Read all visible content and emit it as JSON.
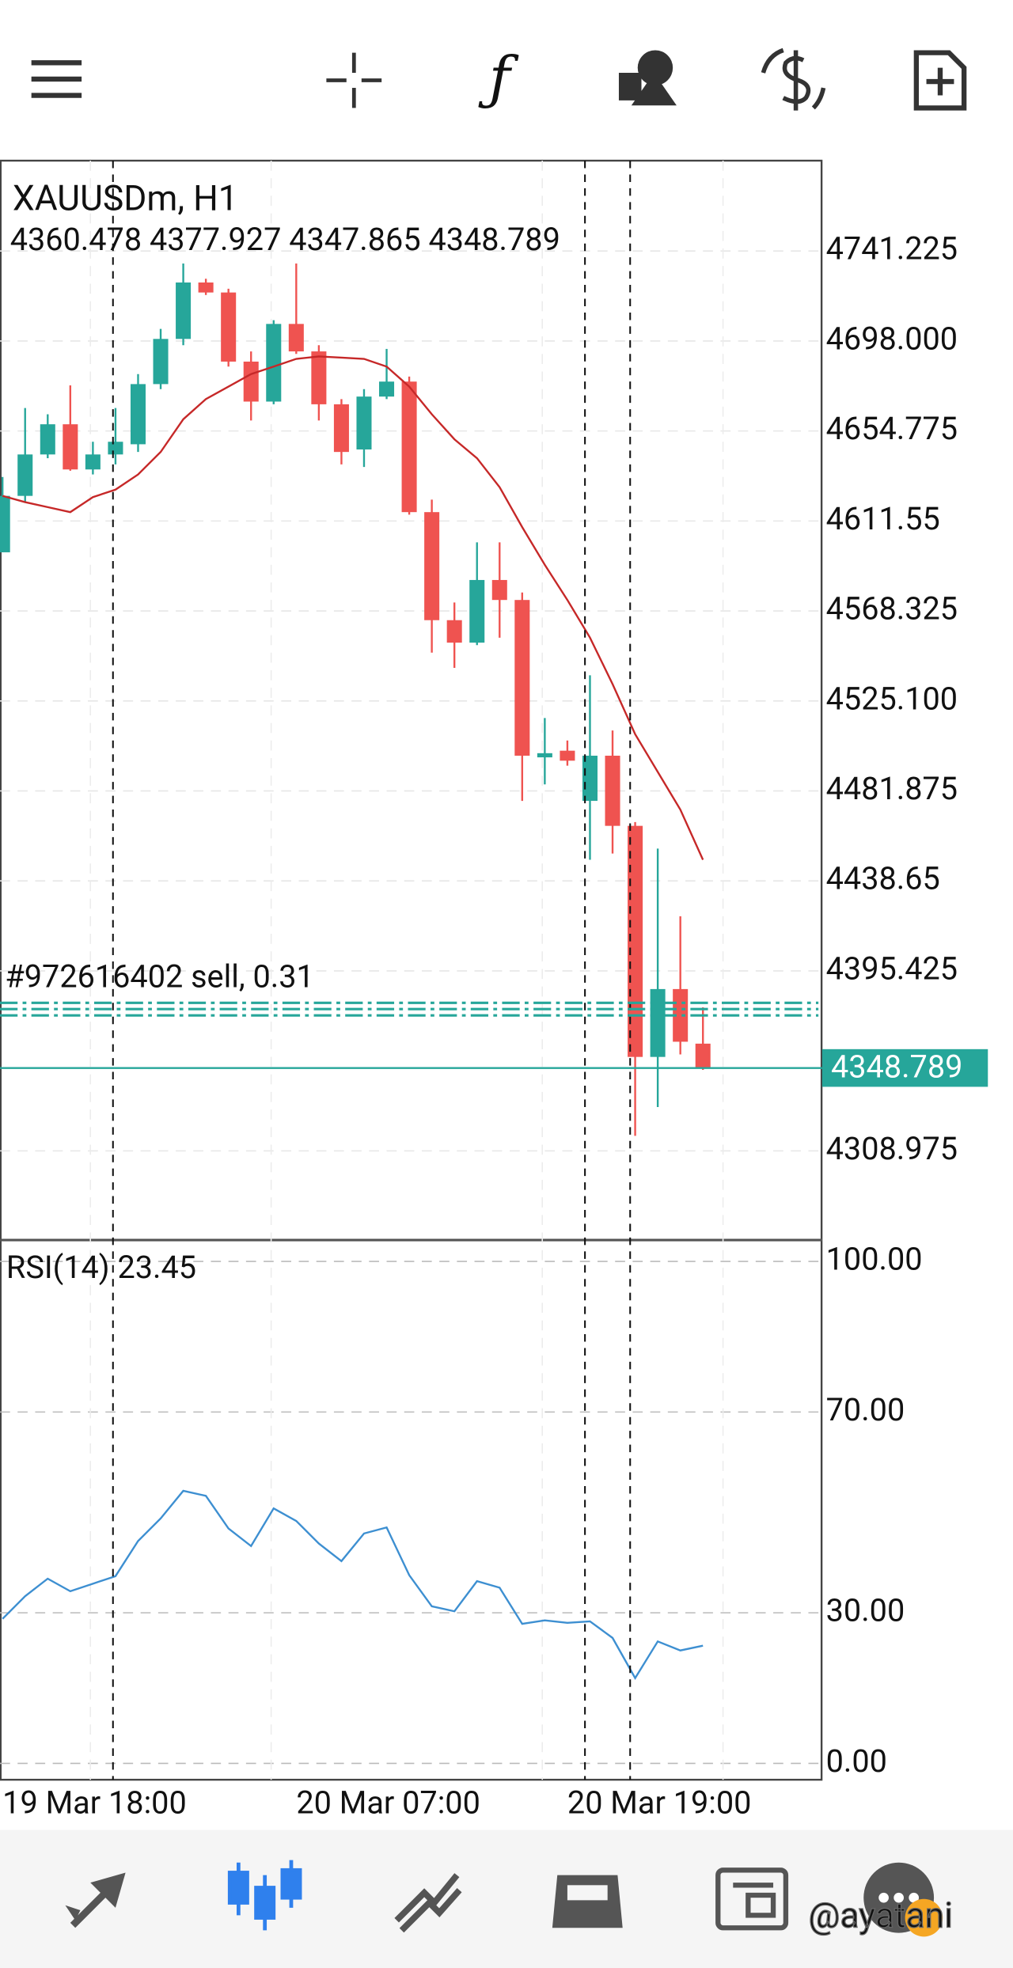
{
  "chart_data": [
    {
      "type": "candlestick",
      "title": "XAUUSDm, H1",
      "categories": [
        "19 Mar 18:00",
        null,
        null,
        null,
        null,
        null,
        null,
        null,
        null,
        null,
        null,
        null,
        null,
        "20 Mar 07:00",
        null,
        null,
        null,
        null,
        null,
        null,
        null,
        null,
        null,
        null,
        null,
        "20 Mar 19:00",
        null,
        null,
        null,
        null,
        null,
        null
      ],
      "open": [
        4596.5,
        4623.6,
        4643.5,
        4658.0,
        4636.3,
        4643.5,
        4648.4,
        4677.3,
        4699.0,
        4726.1,
        4721.3,
        4688.1,
        4668.9,
        4706.2,
        4693.0,
        4667.6,
        4645.9,
        4671.3,
        4678.5,
        4615.8,
        4563.9,
        4553.1,
        4583.2,
        4573.6,
        4498.0,
        4501.2,
        4477.1,
        4498.8,
        4465.1,
        4354.1,
        4386.7,
        4360.478
      ],
      "high": [
        4632.7,
        4665.8,
        4662.8,
        4676.7,
        4649.6,
        4665.8,
        4682.1,
        4703.8,
        4735.2,
        4727.9,
        4723.1,
        4693.0,
        4708.0,
        4735.2,
        4696.0,
        4670.1,
        4674.9,
        4694.2,
        4680.9,
        4621.8,
        4572.4,
        4601.3,
        4601.3,
        4577.2,
        4516.9,
        4506.1,
        4537.4,
        4510.9,
        4466.9,
        4454.2,
        4421.7,
        4377.927
      ],
      "low": [
        4596.5,
        4620.6,
        4641.7,
        4635.7,
        4633.9,
        4638.7,
        4644.7,
        4674.9,
        4696.0,
        4720.1,
        4685.7,
        4659.8,
        4667.6,
        4691.8,
        4659.8,
        4638.7,
        4637.5,
        4670.1,
        4614.6,
        4548.3,
        4541.0,
        4551.9,
        4555.5,
        4477.1,
        4485.0,
        4494.0,
        4448.8,
        4451.8,
        4316.2,
        4330.0,
        4355.3,
        4347.865
      ],
      "close": [
        4623.6,
        4643.5,
        4658.0,
        4636.3,
        4643.5,
        4649.6,
        4677.3,
        4699.0,
        4726.1,
        4721.3,
        4688.1,
        4668.9,
        4706.2,
        4693.0,
        4667.6,
        4644.7,
        4671.3,
        4678.5,
        4615.8,
        4563.9,
        4553.1,
        4583.2,
        4573.6,
        4498.8,
        4500.0,
        4496.4,
        4498.8,
        4465.1,
        4354.1,
        4386.7,
        4361.4,
        4348.789
      ],
      "up_color": "#26a69a",
      "down_color": "#ef5350",
      "ma_values": [
        4623.6,
        4620.6,
        4618.2,
        4615.8,
        4623.0,
        4626.6,
        4633.9,
        4644.7,
        4660.4,
        4670.1,
        4676.1,
        4682.1,
        4685.7,
        4689.4,
        4690.6,
        4690.0,
        4689.4,
        4685.7,
        4676.1,
        4662.8,
        4650.8,
        4641.7,
        4627.8,
        4608.6,
        4590.5,
        4573.6,
        4555.5,
        4533.2,
        4509.1,
        4491.0,
        4472.9,
        4448.8
      ],
      "ma_color": "#c62828",
      "ylim": [
        4266.14,
        4784.63
      ],
      "yticks": [
        4741.225,
        {
          "value": 4698,
          "label": "4698.000"
        },
        4654.775,
        4611.55,
        4568.325,
        {
          "value": 4525.1,
          "label": "4525.100"
        },
        4481.875,
        4438.65,
        4395.425,
        4308.975
      ],
      "grid": true,
      "current_price": 4348.789,
      "annotation": "#972616402 sell, 0.31"
    },
    {
      "type": "line",
      "title": "RSI(14)",
      "color": "#3d8fd1",
      "values": [
        28.8,
        33.3,
        36.8,
        34.3,
        35.8,
        37.3,
        44.3,
        48.8,
        54.3,
        53.3,
        46.8,
        43.3,
        50.8,
        48.3,
        43.8,
        40.3,
        45.8,
        47.0,
        37.5,
        31.3,
        30.3,
        36.3,
        35.0,
        27.8,
        28.5,
        28.0,
        28.3,
        25.0,
        17.0,
        24.3,
        22.5,
        23.45
      ],
      "ylim": [
        -3.25,
        104.25
      ],
      "yticks": [
        {
          "value": 100,
          "label": "100.00"
        },
        {
          "value": 70,
          "label": "70.00"
        },
        {
          "value": 30,
          "label": "30.00"
        },
        {
          "value": 0,
          "label": "0.00"
        }
      ],
      "grid": true
    }
  ],
  "watermark": "@ayatani"
}
